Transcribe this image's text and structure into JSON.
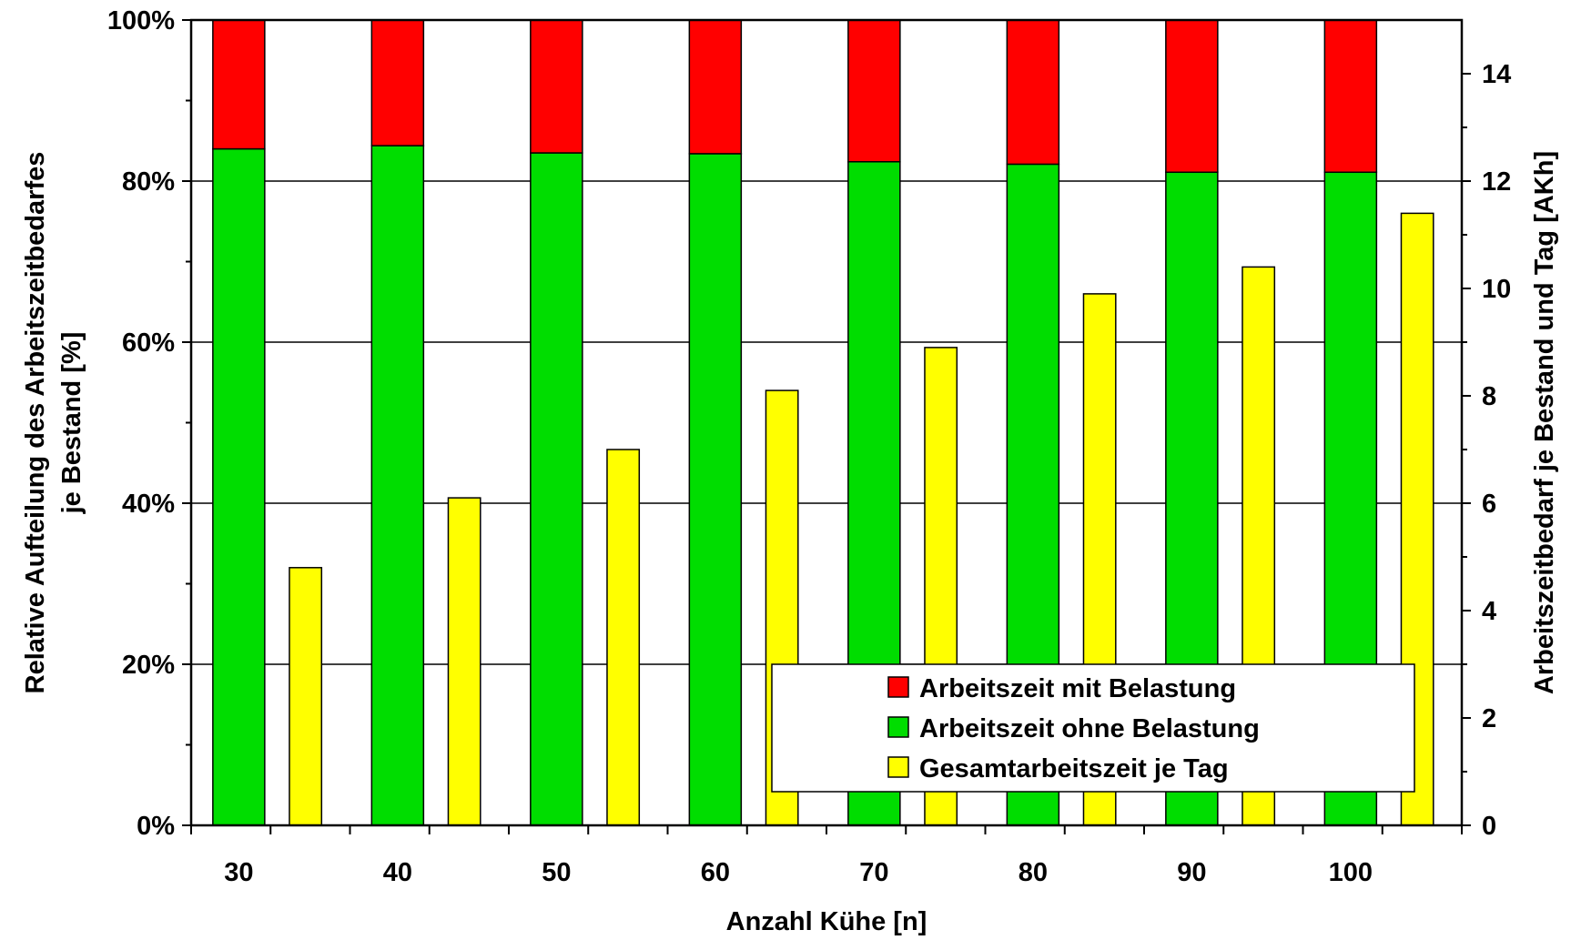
{
  "chart_data": {
    "type": "bar",
    "categories": [
      "30",
      "40",
      "50",
      "60",
      "70",
      "80",
      "90",
      "100"
    ],
    "xlabel": "Anzahl Kühe [n]",
    "ylabel_left": "Relative Aufteilung des Arbeitszeitbedarfes je Bestand [%]",
    "ylabel_left_lines": [
      "Relative Aufteilung des Arbeitszeitbedarfes",
      "je Bestand [%]"
    ],
    "ylabel_right": "Arbeitszeitbedarf je Bestand und Tag [AKh]",
    "ylim_left": [
      0,
      100
    ],
    "ylim_right": [
      0,
      15
    ],
    "yticks_left": [
      "0%",
      "20%",
      "40%",
      "60%",
      "80%",
      "100%"
    ],
    "yticks_right": [
      "0",
      "2",
      "4",
      "6",
      "8",
      "10",
      "12",
      "14"
    ],
    "grid": true,
    "legend_position": "bottom-right",
    "series": [
      {
        "name": "Arbeitszeit mit Belastung",
        "axis": "left",
        "stacked": true,
        "color": "#ff0000",
        "values": [
          16,
          15.6,
          16.5,
          16.6,
          17.6,
          17.9,
          18.9,
          18.9
        ]
      },
      {
        "name": "Arbeitszeit ohne Belastung",
        "axis": "left",
        "stacked": true,
        "color": "#00dd00",
        "values": [
          84,
          84.4,
          83.5,
          83.4,
          82.4,
          82.1,
          81.1,
          81.1
        ]
      },
      {
        "name": "Gesamtarbeitszeit je Tag",
        "axis": "right",
        "stacked": false,
        "color": "#ffff00",
        "values": [
          4.8,
          6.1,
          7.0,
          8.1,
          8.9,
          9.9,
          10.4,
          11.4
        ]
      }
    ],
    "legend_order": [
      0,
      1,
      2
    ]
  }
}
